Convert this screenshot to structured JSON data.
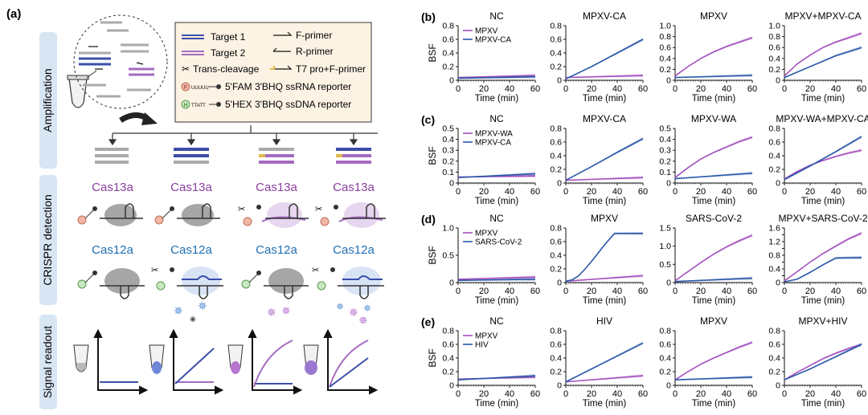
{
  "panel_a": {
    "label": "(a)",
    "side_labels": [
      "Amplification",
      "CRISPR detection",
      "Signal readout"
    ],
    "legend": {
      "target1": "Target 1",
      "target2": "Target 2",
      "f_primer": "F-primer",
      "r_primer": "R-primer",
      "trans_cleavage": "Trans-cleavage",
      "t7_primer": "T7 pro+F-primer",
      "fam_reporter": "5'FAM 3'BHQ ssRNA reporter",
      "hex_reporter": "5'HEX 3'BHQ ssDNA reporter",
      "rna_seq": "UUUUU",
      "dna_seq": "TTATT",
      "fam_tag": "F",
      "hex_tag": "H"
    },
    "cas13a_label": "Cas13a",
    "cas12a_label": "Cas12a",
    "colors": {
      "target1": "#3b4ea8",
      "target2": "#a46bbf",
      "cas13a": "#8a3f9e",
      "cas12a": "#1f6fb5",
      "sidebar": "#d8e6f4"
    }
  },
  "chart_data": [
    {
      "type": "line",
      "row": "b",
      "title": "NC",
      "ylabel": "BSF",
      "xlabel": "Time (min)",
      "ylim": [
        0,
        0.8
      ],
      "yticks": [
        0,
        0.2,
        0.4,
        0.6,
        0.8
      ],
      "xticks": [
        0,
        20,
        40,
        60
      ],
      "legend": [
        "MPXV",
        "MPXV-CA"
      ],
      "series": [
        {
          "name": "MPXV",
          "values": [
            [
              0,
              0.04
            ],
            [
              60,
              0.07
            ]
          ]
        },
        {
          "name": "MPXV-CA",
          "values": [
            [
              0,
              0.03
            ],
            [
              60,
              0.05
            ]
          ]
        }
      ]
    },
    {
      "type": "line",
      "row": "b",
      "title": "MPXV-CA",
      "xlabel": "Time (min)",
      "ylim": [
        0,
        0.8
      ],
      "yticks": [
        0,
        0.2,
        0.4,
        0.6,
        0.8
      ],
      "xticks": [
        0,
        20,
        40,
        60
      ],
      "series": [
        {
          "name": "MPXV",
          "values": [
            [
              0,
              0.04
            ],
            [
              60,
              0.07
            ]
          ]
        },
        {
          "name": "MPXV-CA",
          "values": [
            [
              0,
              0.02
            ],
            [
              20,
              0.2
            ],
            [
              40,
              0.4
            ],
            [
              60,
              0.6
            ]
          ]
        }
      ]
    },
    {
      "type": "line",
      "row": "b",
      "title": "MPXV",
      "xlabel": "Time (min)",
      "ylim": [
        0,
        1.0
      ],
      "yticks": [
        0,
        0.2,
        0.4,
        0.6,
        0.8,
        1.0
      ],
      "xticks": [
        0,
        20,
        40,
        60
      ],
      "series": [
        {
          "name": "MPXV",
          "values": [
            [
              0,
              0.08
            ],
            [
              10,
              0.25
            ],
            [
              20,
              0.4
            ],
            [
              30,
              0.52
            ],
            [
              40,
              0.62
            ],
            [
              50,
              0.7
            ],
            [
              60,
              0.78
            ]
          ]
        },
        {
          "name": "MPXV-CA",
          "values": [
            [
              0,
              0.05
            ],
            [
              60,
              0.09
            ]
          ]
        }
      ]
    },
    {
      "type": "line",
      "row": "b",
      "title": "MPXV+MPXV-CA",
      "xlabel": "Time (min)",
      "ylim": [
        0,
        1.0
      ],
      "yticks": [
        0,
        0.2,
        0.4,
        0.6,
        0.8,
        1.0
      ],
      "xticks": [
        0,
        20,
        40,
        60
      ],
      "series": [
        {
          "name": "MPXV",
          "values": [
            [
              0,
              0.08
            ],
            [
              10,
              0.3
            ],
            [
              20,
              0.46
            ],
            [
              30,
              0.6
            ],
            [
              40,
              0.7
            ],
            [
              50,
              0.78
            ],
            [
              60,
              0.86
            ]
          ]
        },
        {
          "name": "MPXV-CA",
          "values": [
            [
              0,
              0.05
            ],
            [
              20,
              0.25
            ],
            [
              40,
              0.45
            ],
            [
              60,
              0.6
            ]
          ]
        }
      ]
    },
    {
      "type": "line",
      "row": "c",
      "title": "NC",
      "ylabel": "BSF",
      "xlabel": "Time (min)",
      "ylim": [
        0,
        0.5
      ],
      "yticks": [
        0,
        0.1,
        0.2,
        0.3,
        0.4,
        0.5
      ],
      "xticks": [
        0,
        20,
        40,
        60
      ],
      "legend": [
        "MPXV-WA",
        "MPXV-CA"
      ],
      "series": [
        {
          "name": "MPXV-WA",
          "values": [
            [
              0,
              0.055
            ],
            [
              60,
              0.065
            ]
          ]
        },
        {
          "name": "MPXV-CA",
          "values": [
            [
              0,
              0.05
            ],
            [
              60,
              0.085
            ]
          ]
        }
      ]
    },
    {
      "type": "line",
      "row": "c",
      "title": "MPXV-CA",
      "xlabel": "Time (min)",
      "ylim": [
        0,
        0.8
      ],
      "yticks": [
        0,
        0.2,
        0.4,
        0.6,
        0.8
      ],
      "xticks": [
        0,
        20,
        40,
        60
      ],
      "series": [
        {
          "name": "MPXV-WA",
          "values": [
            [
              0,
              0.04
            ],
            [
              60,
              0.08
            ]
          ]
        },
        {
          "name": "MPXV-CA",
          "values": [
            [
              0,
              0.04
            ],
            [
              20,
              0.24
            ],
            [
              40,
              0.45
            ],
            [
              60,
              0.65
            ]
          ]
        }
      ]
    },
    {
      "type": "line",
      "row": "c",
      "title": "MPXV-WA",
      "xlabel": "Time (min)",
      "ylim": [
        0,
        0.5
      ],
      "yticks": [
        0,
        0.1,
        0.2,
        0.3,
        0.4,
        0.5
      ],
      "xticks": [
        0,
        20,
        40,
        60
      ],
      "series": [
        {
          "name": "MPXV-WA",
          "values": [
            [
              0,
              0.05
            ],
            [
              10,
              0.14
            ],
            [
              20,
              0.22
            ],
            [
              30,
              0.28
            ],
            [
              40,
              0.33
            ],
            [
              50,
              0.38
            ],
            [
              60,
              0.42
            ]
          ]
        },
        {
          "name": "MPXV-CA",
          "values": [
            [
              0,
              0.04
            ],
            [
              60,
              0.09
            ]
          ]
        }
      ]
    },
    {
      "type": "line",
      "row": "c",
      "title": "MPXV-WA+MPXV-CA",
      "xlabel": "Time (min)",
      "ylim": [
        0,
        0.8
      ],
      "yticks": [
        0,
        0.2,
        0.4,
        0.6,
        0.8
      ],
      "xticks": [
        0,
        20,
        40,
        60
      ],
      "series": [
        {
          "name": "MPXV-WA",
          "values": [
            [
              0,
              0.06
            ],
            [
              10,
              0.17
            ],
            [
              20,
              0.26
            ],
            [
              30,
              0.33
            ],
            [
              40,
              0.39
            ],
            [
              50,
              0.44
            ],
            [
              60,
              0.48
            ]
          ]
        },
        {
          "name": "MPXV-CA",
          "values": [
            [
              0,
              0.05
            ],
            [
              20,
              0.25
            ],
            [
              40,
              0.46
            ],
            [
              60,
              0.68
            ]
          ]
        }
      ]
    },
    {
      "type": "line",
      "row": "d",
      "title": "NC",
      "ylabel": "BSF",
      "xlabel": "Time (min)",
      "ylim": [
        0,
        1.0
      ],
      "yticks": [
        0,
        0.5,
        1.0
      ],
      "xticks": [
        0,
        20,
        40,
        60
      ],
      "legend": [
        "MPXV",
        "SARS-CoV-2"
      ],
      "series": [
        {
          "name": "MPXV",
          "values": [
            [
              0,
              0.06
            ],
            [
              60,
              0.1
            ]
          ]
        },
        {
          "name": "SARS-CoV-2",
          "values": [
            [
              0,
              0.04
            ],
            [
              60,
              0.06
            ]
          ]
        }
      ]
    },
    {
      "type": "line",
      "row": "d",
      "title": "MPXV",
      "xlabel": "Time (min)",
      "ylim": [
        0,
        0.8
      ],
      "yticks": [
        0,
        0.2,
        0.4,
        0.6,
        0.8
      ],
      "xticks": [
        0,
        20,
        40,
        60
      ],
      "series": [
        {
          "name": "MPXV",
          "values": [
            [
              0,
              0.02
            ],
            [
              60,
              0.1
            ]
          ]
        },
        {
          "name": "SARS-CoV-2",
          "values": [
            [
              0,
              0.02
            ],
            [
              5,
              0.04
            ],
            [
              10,
              0.1
            ],
            [
              15,
              0.2
            ],
            [
              20,
              0.31
            ],
            [
              25,
              0.43
            ],
            [
              30,
              0.55
            ],
            [
              35,
              0.66
            ],
            [
              38,
              0.72
            ],
            [
              40,
              0.72
            ],
            [
              60,
              0.72
            ]
          ]
        }
      ]
    },
    {
      "type": "line",
      "row": "d",
      "title": "SARS-CoV-2",
      "xlabel": "Time (min)",
      "ylim": [
        0,
        1.5
      ],
      "yticks": [
        0,
        0.5,
        1.0,
        1.5
      ],
      "xticks": [
        0,
        20,
        40,
        60
      ],
      "series": [
        {
          "name": "MPXV",
          "values": [
            [
              0,
              0.05
            ],
            [
              10,
              0.3
            ],
            [
              20,
              0.55
            ],
            [
              30,
              0.78
            ],
            [
              40,
              0.98
            ],
            [
              50,
              1.15
            ],
            [
              60,
              1.3
            ]
          ]
        },
        {
          "name": "SARS-CoV-2",
          "values": [
            [
              0,
              0.03
            ],
            [
              60,
              0.12
            ]
          ]
        }
      ]
    },
    {
      "type": "line",
      "row": "d",
      "title": "MPXV+SARS-CoV-2",
      "xlabel": "Time (min)",
      "ylim": [
        0,
        1.6
      ],
      "yticks": [
        0,
        0.2,
        0.4,
        0.6,
        0.8,
        1.0,
        1.2,
        1.4,
        1.6
      ],
      "xticks": [
        0,
        20,
        40,
        60
      ],
      "series": [
        {
          "name": "MPXV",
          "values": [
            [
              0,
              0.05
            ],
            [
              10,
              0.32
            ],
            [
              20,
              0.6
            ],
            [
              30,
              0.85
            ],
            [
              40,
              1.07
            ],
            [
              50,
              1.28
            ],
            [
              60,
              1.45
            ]
          ]
        },
        {
          "name": "SARS-CoV-2",
          "values": [
            [
              0,
              0.02
            ],
            [
              10,
              0.1
            ],
            [
              20,
              0.3
            ],
            [
              30,
              0.52
            ],
            [
              40,
              0.72
            ],
            [
              60,
              0.73
            ]
          ]
        }
      ]
    },
    {
      "type": "line",
      "row": "e",
      "title": "NC",
      "ylabel": "BSF",
      "xlabel": "Time (min)",
      "ylim": [
        0,
        0.8
      ],
      "yticks": [
        0,
        0.2,
        0.4,
        0.6,
        0.8
      ],
      "xticks": [
        0,
        20,
        40,
        60
      ],
      "legend": [
        "MPXV",
        "HIV"
      ],
      "series": [
        {
          "name": "MPXV",
          "values": [
            [
              0,
              0.09
            ],
            [
              60,
              0.12
            ]
          ]
        },
        {
          "name": "HIV",
          "values": [
            [
              0,
              0.08
            ],
            [
              60,
              0.14
            ]
          ]
        }
      ]
    },
    {
      "type": "line",
      "row": "e",
      "title": "HIV",
      "xlabel": "Time (min)",
      "ylim": [
        0,
        0.8
      ],
      "yticks": [
        0,
        0.2,
        0.4,
        0.6,
        0.8
      ],
      "xticks": [
        0,
        20,
        40,
        60
      ],
      "series": [
        {
          "name": "MPXV",
          "values": [
            [
              0,
              0.05
            ],
            [
              60,
              0.14
            ]
          ]
        },
        {
          "name": "HIV",
          "values": [
            [
              0,
              0.05
            ],
            [
              20,
              0.24
            ],
            [
              40,
              0.43
            ],
            [
              60,
              0.62
            ]
          ]
        }
      ]
    },
    {
      "type": "line",
      "row": "e",
      "title": "MPXV",
      "xlabel": "Time (min)",
      "ylim": [
        0,
        0.8
      ],
      "yticks": [
        0,
        0.2,
        0.4,
        0.6,
        0.8
      ],
      "xticks": [
        0,
        20,
        40,
        60
      ],
      "series": [
        {
          "name": "MPXV",
          "values": [
            [
              0,
              0.08
            ],
            [
              10,
              0.2
            ],
            [
              20,
              0.31
            ],
            [
              30,
              0.4
            ],
            [
              40,
              0.48
            ],
            [
              50,
              0.56
            ],
            [
              60,
              0.63
            ]
          ]
        },
        {
          "name": "HIV",
          "values": [
            [
              0,
              0.08
            ],
            [
              60,
              0.12
            ]
          ]
        }
      ]
    },
    {
      "type": "line",
      "row": "e",
      "title": "MPXV+HIV",
      "xlabel": "Time (min)",
      "ylim": [
        0,
        0.8
      ],
      "yticks": [
        0,
        0.2,
        0.4,
        0.6,
        0.8
      ],
      "xticks": [
        0,
        20,
        40,
        60
      ],
      "series": [
        {
          "name": "MPXV",
          "values": [
            [
              0,
              0.08
            ],
            [
              10,
              0.19
            ],
            [
              20,
              0.29
            ],
            [
              30,
              0.39
            ],
            [
              40,
              0.47
            ],
            [
              50,
              0.54
            ],
            [
              60,
              0.6
            ]
          ]
        },
        {
          "name": "HIV",
          "values": [
            [
              0,
              0.08
            ],
            [
              20,
              0.24
            ],
            [
              40,
              0.42
            ],
            [
              60,
              0.6
            ]
          ]
        }
      ]
    }
  ],
  "row_labels": [
    "(b)",
    "(c)",
    "(d)",
    "(e)"
  ],
  "series_colors": {
    "s1": "#a44fbf",
    "s2": "#2a58a8"
  }
}
